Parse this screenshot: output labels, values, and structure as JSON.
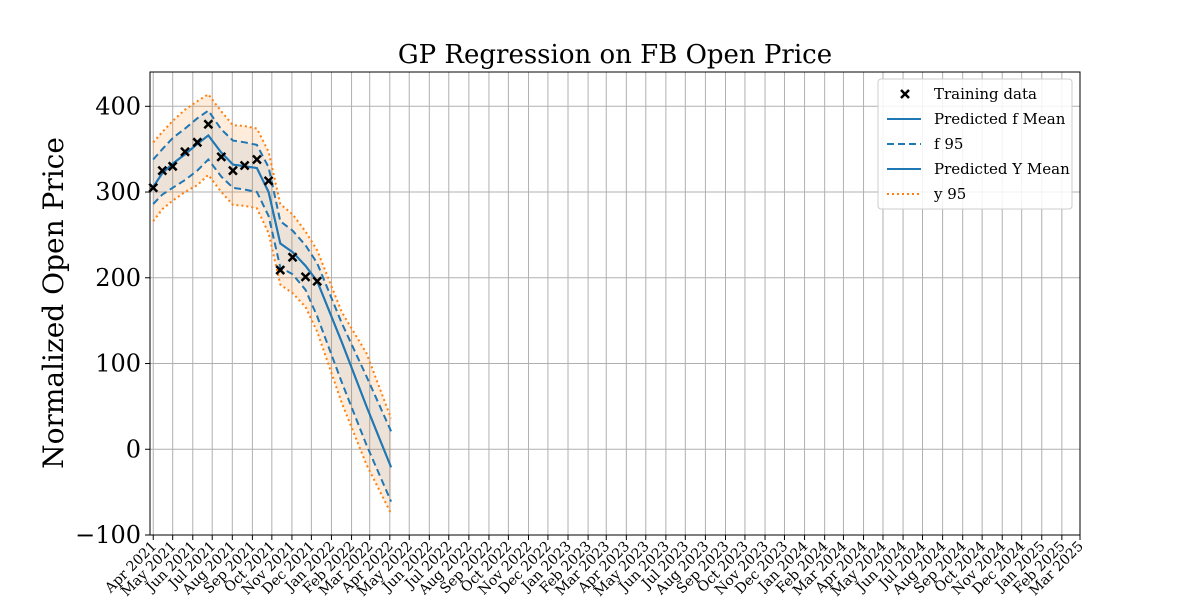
{
  "chart_data": {
    "type": "line",
    "title": "GP Regression on FB Open Price",
    "xlabel": "",
    "ylabel": "Normalized Open Price",
    "ylim": [
      -100,
      440
    ],
    "yticks": [
      -100,
      0,
      100,
      200,
      300,
      400
    ],
    "ytick_labels": [
      "−100",
      "0",
      "100",
      "200",
      "300",
      "400"
    ],
    "grid": true,
    "legend_position": "top-right",
    "x_ticks": [
      "Apr 2021",
      "May 2021",
      "Jun 2021",
      "Jul 2021",
      "Aug 2021",
      "Sep 2021",
      "Oct 2021",
      "Nov 2021",
      "Dec 2021",
      "Jan 2022",
      "Feb 2022",
      "Mar 2022",
      "Apr 2022",
      "May 2022",
      "Jun 2022",
      "Jul 2022",
      "Aug 2022",
      "Sep 2022",
      "Oct 2022",
      "Nov 2022",
      "Dec 2022",
      "Jan 2023",
      "Feb 2023",
      "Mar 2023",
      "Apr 2023",
      "May 2023",
      "Jun 2023",
      "Jul 2023",
      "Aug 2023",
      "Sep 2023",
      "Oct 2023",
      "Nov 2023",
      "Dec 2023",
      "Jan 2024",
      "Feb 2024",
      "Mar 2024",
      "Apr 2024",
      "May 2024",
      "Jun 2024",
      "Jul 2024",
      "Aug 2024",
      "Sep 2024",
      "Oct 2024",
      "Nov 2024",
      "Dec 2024",
      "Jan 2025",
      "Feb 2025",
      "Mar 2025"
    ],
    "x_range": [
      "2021-03-27",
      "2025-03-01"
    ],
    "colors": {
      "mean": "#1f77b4",
      "y95": "#ff7f0e",
      "points": "#000000",
      "band": "#f5dcc8"
    },
    "legend": [
      {
        "label": "Training data",
        "style": "marker-x"
      },
      {
        "label": "Predicted f Mean",
        "style": "solid-blue"
      },
      {
        "label": "f 95",
        "style": "dashed-blue"
      },
      {
        "label": "Predicted Y Mean",
        "style": "solid-blue"
      },
      {
        "label": "y 95",
        "style": "dotted-orange"
      }
    ],
    "training_data": [
      {
        "x": "2021-04-01",
        "y": 305
      },
      {
        "x": "2021-04-15",
        "y": 325
      },
      {
        "x": "2021-05-01",
        "y": 330
      },
      {
        "x": "2021-05-20",
        "y": 347
      },
      {
        "x": "2021-06-08",
        "y": 358
      },
      {
        "x": "2021-06-25",
        "y": 379
      },
      {
        "x": "2021-07-15",
        "y": 341
      },
      {
        "x": "2021-08-02",
        "y": 325
      },
      {
        "x": "2021-08-20",
        "y": 331
      },
      {
        "x": "2021-09-08",
        "y": 338
      },
      {
        "x": "2021-09-26",
        "y": 313
      },
      {
        "x": "2021-10-14",
        "y": 209
      },
      {
        "x": "2021-11-02",
        "y": 224
      },
      {
        "x": "2021-11-22",
        "y": 201
      },
      {
        "x": "2021-12-10",
        "y": 196
      }
    ],
    "x": [
      "2021-04-01",
      "2021-04-15",
      "2021-05-01",
      "2021-05-20",
      "2021-06-08",
      "2021-06-25",
      "2021-07-15",
      "2021-08-02",
      "2021-08-20",
      "2021-09-08",
      "2021-09-26",
      "2021-10-14",
      "2021-11-02",
      "2021-11-22",
      "2021-12-10",
      "2022-01-17",
      "2022-02-24",
      "2022-04-03"
    ],
    "series": [
      {
        "name": "Predicted f Mean",
        "values": [
          306,
          322,
          333,
          344,
          356,
          366,
          346,
          332,
          330,
          328,
          300,
          240,
          230,
          214,
          196,
          125,
          50,
          -21
        ]
      },
      {
        "name": "f 95",
        "bound": "upper",
        "values": [
          338,
          350,
          363,
          374,
          386,
          395,
          373,
          360,
          358,
          355,
          329,
          266,
          255,
          238,
          217,
          147,
          85,
          21
        ]
      },
      {
        "name": "f 95",
        "bound": "lower",
        "values": [
          286,
          297,
          305,
          314,
          325,
          338,
          318,
          305,
          303,
          300,
          272,
          212,
          204,
          186,
          155,
          78,
          5,
          -61
        ]
      },
      {
        "name": "Predicted Y Mean",
        "values": [
          306,
          322,
          333,
          344,
          356,
          366,
          346,
          332,
          330,
          328,
          300,
          240,
          230,
          214,
          196,
          125,
          50,
          -21
        ]
      },
      {
        "name": "y 95",
        "bound": "upper",
        "values": [
          358,
          370,
          383,
          396,
          406,
          414,
          394,
          378,
          377,
          374,
          347,
          286,
          274,
          254,
          232,
          160,
          112,
          36
        ]
      },
      {
        "name": "y 95",
        "bound": "lower",
        "values": [
          266,
          280,
          290,
          300,
          308,
          320,
          300,
          285,
          284,
          281,
          252,
          192,
          182,
          166,
          137,
          54,
          -18,
          -75
        ]
      }
    ]
  }
}
